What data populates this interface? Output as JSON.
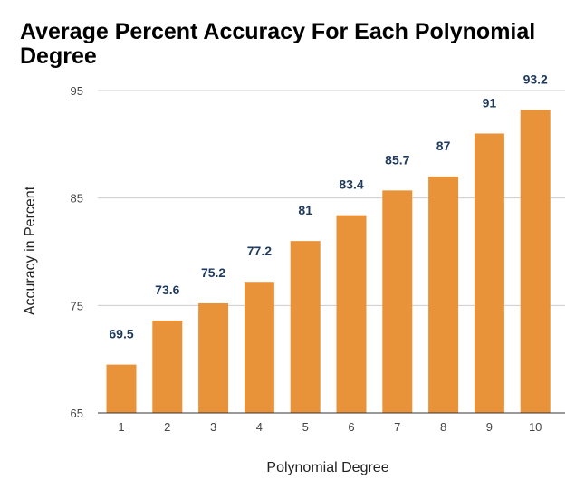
{
  "chart_data": {
    "type": "bar",
    "title": "Average Percent Accuracy For Each Polynomial Degree",
    "xlabel": "Polynomial Degree",
    "ylabel": "Accuracy in Percent",
    "categories": [
      "1",
      "2",
      "3",
      "4",
      "5",
      "6",
      "7",
      "8",
      "9",
      "10"
    ],
    "values": [
      69.5,
      73.6,
      75.2,
      77.2,
      81,
      83.4,
      85.7,
      87,
      91,
      93.2
    ],
    "data_labels": [
      "69.5",
      "73.6",
      "75.2",
      "77.2",
      "81",
      "83.4",
      "85.7",
      "87",
      "91",
      "93.2"
    ],
    "ylim": [
      65,
      95
    ],
    "yticks": [
      "65",
      "75",
      "85",
      "95"
    ],
    "grid": true,
    "legend": "none",
    "colors": {
      "bar": "#e8923a",
      "label": "#1f3a5f",
      "grid": "#cccccc"
    }
  }
}
